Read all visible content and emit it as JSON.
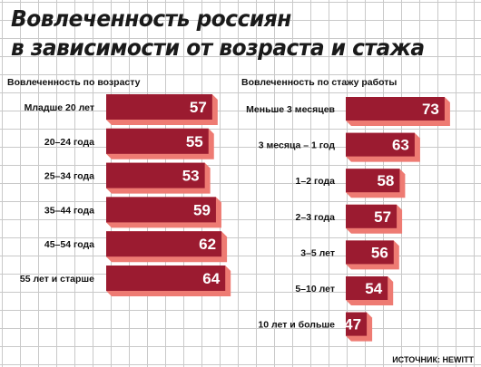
{
  "title_line1": "Вовлеченность россиян",
  "title_line2": "в зависимости от возраста и стажа",
  "source": "ИСТОЧНИК: HEWITT",
  "colors": {
    "bar": "#9b1b30",
    "bar_shadow": "#ee7b73",
    "grid": "#c9c9c9"
  },
  "chart_data": [
    {
      "type": "bar",
      "orientation": "horizontal",
      "title": "Вовлеченность по возрасту",
      "categories": [
        "Младше 20 лет",
        "20–24 года",
        "25–34 года",
        "35–44 года",
        "45–54 года",
        "55 лет и старше"
      ],
      "values": [
        57,
        55,
        53,
        59,
        62,
        64
      ]
    },
    {
      "type": "bar",
      "orientation": "horizontal",
      "title": "Вовлеченность по стажу работы",
      "categories": [
        "Меньше 3 месяцев",
        "3 месяца – 1 год",
        "1–2 года",
        "2–3 года",
        "3–5 лет",
        "5–10 лет",
        "10 лет и больше"
      ],
      "values": [
        73,
        63,
        58,
        57,
        56,
        54,
        47
      ]
    }
  ]
}
